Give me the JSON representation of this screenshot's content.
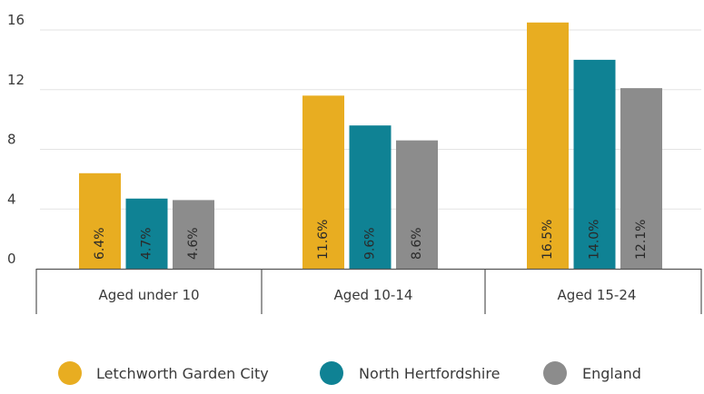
{
  "chart_data": {
    "type": "bar",
    "categories": [
      "Aged under 10",
      "Aged 10-14",
      "Aged 15-24"
    ],
    "series": [
      {
        "name": "Letchworth Garden City",
        "values": [
          6.4,
          11.6,
          16.5
        ],
        "labels": [
          "6.4%",
          "11.6%",
          "16.5%"
        ],
        "color": "#e8ad21"
      },
      {
        "name": "North Hertfordshire",
        "values": [
          4.7,
          9.6,
          14.0
        ],
        "labels": [
          "4.7%",
          "9.6%",
          "14.0%"
        ],
        "color": "#0f8294"
      },
      {
        "name": "England",
        "values": [
          4.6,
          8.6,
          12.1
        ],
        "labels": [
          "4.6%",
          "8.6%",
          "12.1%"
        ],
        "color": "#8c8c8c"
      }
    ],
    "yticks": [
      "0",
      "4",
      "8",
      "12",
      "16"
    ],
    "ylim": [
      0,
      16
    ],
    "grid": true,
    "legend_position": "bottom"
  }
}
